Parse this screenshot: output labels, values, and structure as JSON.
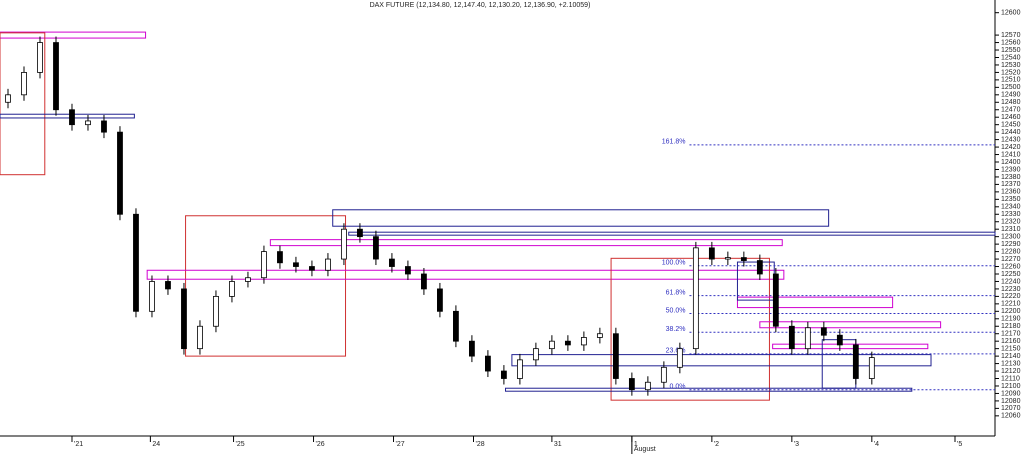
{
  "chart_data": {
    "type": "candlestick",
    "title": "DAX FUTURE (12,134.80, 12,147.40, 12,130.20, 12,136.90, +2.10059)",
    "ohlc": [
      [
        12480,
        12498,
        12472,
        12490
      ],
      [
        12490,
        12528,
        12482,
        12520
      ],
      [
        12520,
        12568,
        12512,
        12560
      ],
      [
        12560,
        12568,
        12462,
        12470
      ],
      [
        12470,
        12478,
        12442,
        12450
      ],
      [
        12450,
        12463,
        12442,
        12455
      ],
      [
        12455,
        12463,
        12432,
        12440
      ],
      [
        12440,
        12448,
        12322,
        12330
      ],
      [
        12330,
        12338,
        12192,
        12200
      ],
      [
        12200,
        12248,
        12192,
        12240
      ],
      [
        12240,
        12248,
        12222,
        12230
      ],
      [
        12230,
        12238,
        12142,
        12150
      ],
      [
        12150,
        12188,
        12142,
        12180
      ],
      [
        12180,
        12228,
        12172,
        12220
      ],
      [
        12220,
        12248,
        12212,
        12240
      ],
      [
        12240,
        12253,
        12232,
        12245
      ],
      [
        12245,
        12288,
        12237,
        12280
      ],
      [
        12280,
        12288,
        12257,
        12265
      ],
      [
        12265,
        12273,
        12252,
        12260
      ],
      [
        12260,
        12268,
        12247,
        12255
      ],
      [
        12255,
        12278,
        12247,
        12270
      ],
      [
        12270,
        12318,
        12262,
        12310
      ],
      [
        12310,
        12318,
        12292,
        12300
      ],
      [
        12300,
        12308,
        12262,
        12270
      ],
      [
        12270,
        12278,
        12252,
        12260
      ],
      [
        12260,
        12268,
        12242,
        12250
      ],
      [
        12250,
        12258,
        12222,
        12230
      ],
      [
        12230,
        12238,
        12192,
        12200
      ],
      [
        12200,
        12208,
        12152,
        12160
      ],
      [
        12160,
        12168,
        12132,
        12140
      ],
      [
        12140,
        12148,
        12112,
        12120
      ],
      [
        12120,
        12128,
        12102,
        12110
      ],
      [
        12110,
        12143,
        12102,
        12135
      ],
      [
        12135,
        12158,
        12127,
        12150
      ],
      [
        12150,
        12168,
        12142,
        12160
      ],
      [
        12160,
        12168,
        12147,
        12155
      ],
      [
        12155,
        12173,
        12147,
        12165
      ],
      [
        12165,
        12178,
        12157,
        12170
      ],
      [
        12170,
        12178,
        12102,
        12110
      ],
      [
        12110,
        12118,
        12087,
        12095
      ],
      [
        12095,
        12113,
        12087,
        12105
      ],
      [
        12105,
        12133,
        12097,
        12125
      ],
      [
        12125,
        12158,
        12117,
        12150
      ],
      [
        12150,
        12293,
        12142,
        12285
      ],
      [
        12285,
        12293,
        12262,
        12270
      ],
      [
        12270,
        12280,
        12262,
        12272
      ],
      [
        12272,
        12280,
        12260,
        12268
      ],
      [
        12268,
        12276,
        12242,
        12250
      ],
      [
        12250,
        12258,
        12172,
        12180
      ],
      [
        12180,
        12188,
        12142,
        12150
      ],
      [
        12150,
        12186,
        12142,
        12178
      ],
      [
        12178,
        12186,
        12160,
        12168
      ],
      [
        12168,
        12176,
        12147,
        12155
      ],
      [
        12155,
        12163,
        12102,
        12110
      ],
      [
        12110,
        12146,
        12102,
        12138
      ]
    ],
    "xlim": [
      0,
      62.2
    ],
    "xticks": [
      {
        "value": 4.5,
        "label": "'21"
      },
      {
        "value": 9.4,
        "label": "24"
      },
      {
        "value": 14.6,
        "label": "'25"
      },
      {
        "value": 19.6,
        "label": "'26"
      },
      {
        "value": 24.6,
        "label": "'27"
      },
      {
        "value": 29.6,
        "label": "'28"
      },
      {
        "value": 34.5,
        "label": "31"
      },
      {
        "value": 39.5,
        "label": "1"
      },
      {
        "value": 44.5,
        "label": "'2"
      },
      {
        "value": 49.5,
        "label": "'3"
      },
      {
        "value": 54.5,
        "label": "'4"
      },
      {
        "value": 59.7,
        "label": "'5"
      }
    ],
    "month_label": "August",
    "ylim": [
      12033,
      12617
    ],
    "yticks": [
      12600,
      12570,
      12560,
      12550,
      12540,
      12530,
      12520,
      12510,
      12500,
      12490,
      12480,
      12470,
      12460,
      12450,
      12440,
      12430,
      12420,
      12410,
      12400,
      12390,
      12380,
      12370,
      12360,
      12350,
      12340,
      12330,
      12320,
      12310,
      12300,
      12290,
      12280,
      12270,
      12260,
      12250,
      12240,
      12230,
      12220,
      12210,
      12200,
      12190,
      12180,
      12170,
      12160,
      12150,
      12140,
      12130,
      12120,
      12110,
      12100,
      12090,
      12080,
      12070,
      12060
    ],
    "zones": [
      {
        "color": "#d000d0",
        "x": [
          0,
          9.1
        ],
        "y": [
          12566,
          12574
        ]
      },
      {
        "color": "#d03030",
        "x": [
          0,
          2.8
        ],
        "y": [
          12383,
          12573
        ]
      },
      {
        "color": "#202090",
        "x": [
          0,
          8.4
        ],
        "y": [
          12459,
          12464
        ]
      },
      {
        "color": "#d03030",
        "x": [
          11.6,
          21.6
        ],
        "y": [
          12140,
          12328
        ]
      },
      {
        "color": "#202090",
        "x": [
          20.8,
          51.8
        ],
        "y": [
          12314,
          12336
        ]
      },
      {
        "color": "#202090",
        "x": [
          21.8,
          62.2
        ],
        "y": [
          12302,
          12306
        ]
      },
      {
        "color": "#d000d0",
        "x": [
          16.9,
          48.9
        ],
        "y": [
          12288,
          12296
        ]
      },
      {
        "color": "#d000d0",
        "x": [
          9.2,
          49
        ],
        "y": [
          12243,
          12255
        ]
      },
      {
        "color": "#d03030",
        "x": [
          38.2,
          48.1
        ],
        "y": [
          12081,
          12271
        ]
      },
      {
        "color": "#202090",
        "x": [
          32,
          58.2
        ],
        "y": [
          12127,
          12142
        ]
      },
      {
        "color": "#202090",
        "x": [
          31.6,
          57
        ],
        "y": [
          12093,
          12097
        ]
      },
      {
        "color": "#d000d0",
        "x": [
          47.5,
          58.8
        ],
        "y": [
          12178,
          12186
        ]
      },
      {
        "color": "#d000d0",
        "x": [
          46.1,
          55.8
        ],
        "y": [
          12205,
          12219
        ]
      },
      {
        "color": "#d000d0",
        "x": [
          48.3,
          58
        ],
        "y": [
          12150,
          12156
        ]
      },
      {
        "color": "#202090",
        "x": [
          46.1,
          48.4
        ],
        "y": [
          12215,
          12266
        ]
      },
      {
        "color": "#202090",
        "x": [
          51.4,
          53.5
        ],
        "y": [
          12097,
          12162
        ]
      }
    ],
    "fib": {
      "color": "#3030c0",
      "x": [
        43.1,
        62.2
      ],
      "levels": [
        {
          "label": "161.8%",
          "value": 12423
        },
        {
          "label": "100.0%",
          "value": 12261
        },
        {
          "label": "61.8%",
          "value": 12221
        },
        {
          "label": "50.0%",
          "value": 12197
        },
        {
          "label": "38.2%",
          "value": 12172
        },
        {
          "label": "23.6%",
          "value": 12143
        },
        {
          "label": "0.0%",
          "value": 12095
        }
      ]
    }
  }
}
